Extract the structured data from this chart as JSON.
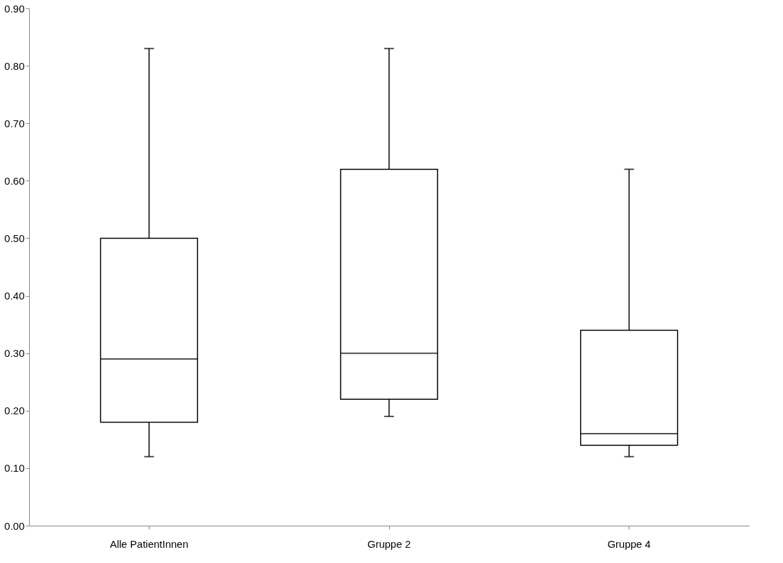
{
  "chart_data": {
    "type": "box",
    "categories": [
      "Alle PatientInnen",
      "Gruppe 2",
      "Gruppe 4"
    ],
    "boxes": [
      {
        "low": 0.12,
        "q1": 0.18,
        "median": 0.29,
        "q3": 0.5,
        "high": 0.83
      },
      {
        "low": 0.19,
        "q1": 0.22,
        "median": 0.3,
        "q3": 0.62,
        "high": 0.83
      },
      {
        "low": 0.12,
        "q1": 0.14,
        "median": 0.16,
        "q3": 0.34,
        "high": 0.62
      }
    ],
    "color": "#000000",
    "ylim": [
      0,
      0.9
    ],
    "yticks": [
      {
        "value": 0,
        "label": "0.00"
      },
      {
        "value": 0.1,
        "label": "0.10"
      },
      {
        "value": 0.2,
        "label": "0.20"
      },
      {
        "value": 0.3,
        "label": "0.30"
      },
      {
        "value": 0.4,
        "label": "0.40"
      },
      {
        "value": 0.5,
        "label": "0.50"
      },
      {
        "value": 0.6,
        "label": "0.60"
      },
      {
        "value": 0.7,
        "label": "0.70"
      },
      {
        "value": 0.8,
        "label": "0.80"
      },
      {
        "value": 0.9,
        "label": "0.90"
      }
    ],
    "grid": false
  }
}
